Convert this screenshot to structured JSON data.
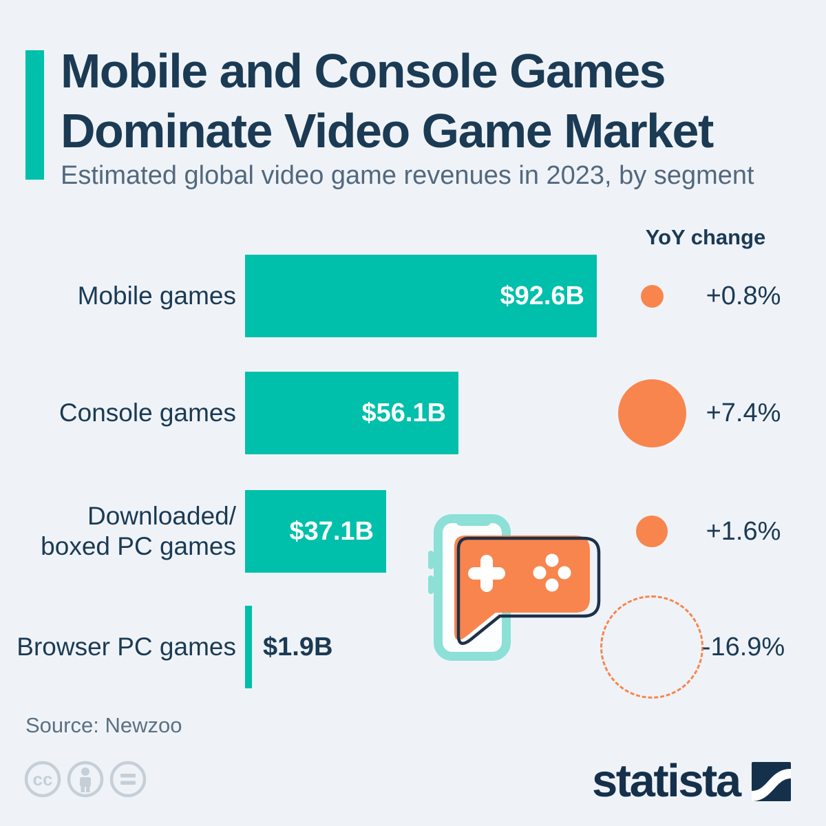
{
  "header": {
    "title": "Mobile and Console Games\nDominate Video Game Market",
    "subtitle": "Estimated global video game revenues in 2023, by segment"
  },
  "chart_data": {
    "type": "bar",
    "orientation": "horizontal",
    "title": "Estimated global video game revenues in 2023, by segment",
    "unit": "billion US dollars",
    "categories": [
      "Mobile games",
      "Console games",
      "Downloaded/\nboxed PC games",
      "Browser PC games"
    ],
    "values": [
      92.6,
      56.1,
      37.1,
      1.9
    ],
    "value_labels": [
      "$92.6B",
      "$56.1B",
      "$37.1B",
      "$1.9B"
    ],
    "yoy_header": "YoY change",
    "yoy_values": [
      0.8,
      7.4,
      1.6,
      -16.9
    ],
    "yoy_labels": [
      "+0.8%",
      "+7.4%",
      "+1.6%",
      "-16.9%"
    ],
    "xlim": [
      0,
      100
    ],
    "grid": false,
    "legend_position": "none",
    "bar_color": "#00bfab",
    "yoy_circle_color": "#f8854d",
    "negative_style": "dashed-outline-circle"
  },
  "footer": {
    "source": "Source: Newzoo",
    "license_icons": [
      "cc-icon",
      "attribution-person-icon",
      "equals-icon"
    ],
    "brand": "statista"
  },
  "colors": {
    "background": "#eff3f8",
    "accent_teal": "#00bfab",
    "navy": "#1b3a54",
    "orange": "#f8854d",
    "subtitle_gray": "#52687e",
    "phone_teal": "#8ce0d6",
    "outline_navy": "#1e3148",
    "license_gray": "#c6cfd8"
  }
}
